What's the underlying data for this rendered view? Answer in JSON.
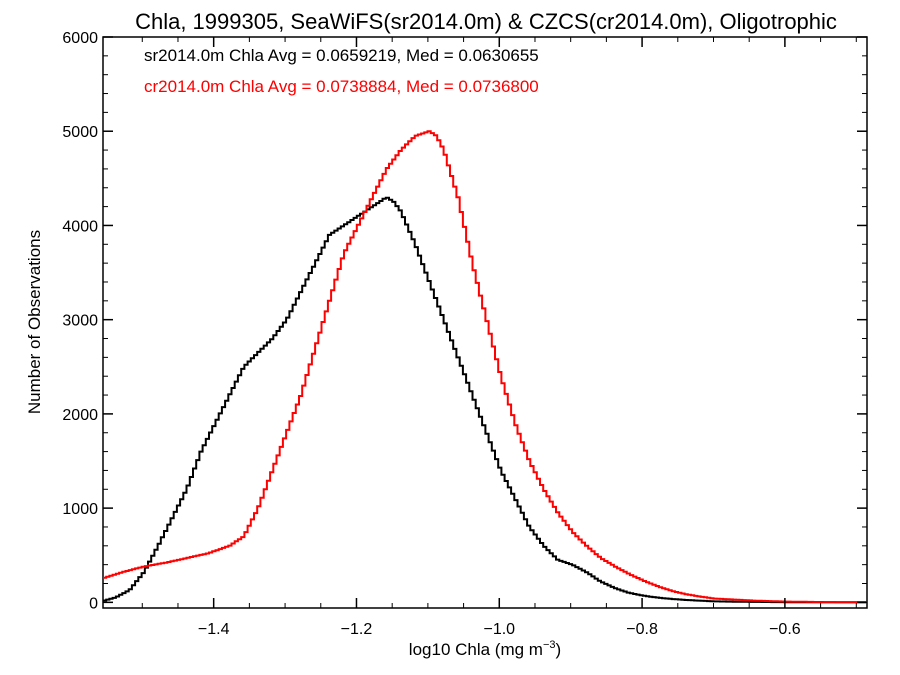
{
  "chart_data": {
    "type": "line",
    "title": "Chla, 1999305, SeaWiFS(sr2014.0m) & CZCS(cr2014.0m), Oligotrophic",
    "xlabel_main": "log10 Chla (mg m",
    "xlabel_exp": "−3",
    "xlabel_close": ")",
    "ylabel": "Number of Observations",
    "xlim": [
      -1.555,
      -0.485
    ],
    "ylim": [
      -60,
      6000
    ],
    "xticks": [
      -1.4,
      -1.2,
      -1.0,
      -0.8,
      -0.6
    ],
    "xtick_labels": [
      "−1.4",
      "−1.2",
      "−1.0",
      "−0.8",
      "−0.6"
    ],
    "yticks": [
      0,
      1000,
      2000,
      3000,
      4000,
      5000,
      6000
    ],
    "ytick_labels": [
      "0",
      "1000",
      "2000",
      "3000",
      "4000",
      "5000",
      "6000"
    ],
    "annotations": [
      {
        "text": "sr2014.0m Chla Avg = 0.0659219, Med = 0.0630655",
        "color": "#000000"
      },
      {
        "text": "cr2014.0m Chla Avg = 0.0738884, Med = 0.0736800",
        "color": "#ff0000"
      }
    ],
    "series": [
      {
        "color": "#000000",
        "x": [
          -1.555,
          -1.54,
          -1.52,
          -1.5,
          -1.48,
          -1.46,
          -1.44,
          -1.42,
          -1.4,
          -1.38,
          -1.36,
          -1.34,
          -1.32,
          -1.3,
          -1.28,
          -1.26,
          -1.24,
          -1.22,
          -1.2,
          -1.18,
          -1.16,
          -1.15,
          -1.14,
          -1.12,
          -1.1,
          -1.08,
          -1.06,
          -1.04,
          -1.02,
          -1.0,
          -0.98,
          -0.96,
          -0.94,
          -0.92,
          -0.9,
          -0.88,
          -0.86,
          -0.84,
          -0.82,
          -0.8,
          -0.78,
          -0.76,
          -0.74,
          -0.7,
          -0.65,
          -0.6,
          -0.55,
          -0.485
        ],
        "y": [
          20,
          50,
          130,
          320,
          600,
          900,
          1200,
          1600,
          1900,
          2200,
          2500,
          2650,
          2800,
          3000,
          3300,
          3600,
          3900,
          4000,
          4100,
          4200,
          4300,
          4250,
          4150,
          3800,
          3400,
          3000,
          2600,
          2200,
          1800,
          1400,
          1100,
          800,
          600,
          450,
          400,
          320,
          220,
          150,
          100,
          70,
          50,
          35,
          25,
          10,
          5,
          2,
          0,
          0
        ]
      },
      {
        "color": "#ff0000",
        "x": [
          -1.555,
          -1.53,
          -1.5,
          -1.47,
          -1.44,
          -1.41,
          -1.38,
          -1.36,
          -1.34,
          -1.32,
          -1.3,
          -1.28,
          -1.26,
          -1.24,
          -1.22,
          -1.2,
          -1.18,
          -1.16,
          -1.14,
          -1.12,
          -1.1,
          -1.09,
          -1.08,
          -1.06,
          -1.04,
          -1.02,
          -1.0,
          -0.98,
          -0.96,
          -0.94,
          -0.92,
          -0.9,
          -0.88,
          -0.86,
          -0.84,
          -0.82,
          -0.8,
          -0.78,
          -0.76,
          -0.74,
          -0.72,
          -0.7,
          -0.65,
          -0.6,
          -0.55,
          -0.485
        ],
        "y": [
          260,
          320,
          380,
          420,
          470,
          520,
          600,
          700,
          1000,
          1400,
          1800,
          2200,
          2700,
          3200,
          3700,
          4000,
          4300,
          4600,
          4800,
          4950,
          5000,
          4950,
          4800,
          4300,
          3600,
          3000,
          2400,
          1900,
          1500,
          1200,
          950,
          750,
          600,
          470,
          380,
          300,
          230,
          170,
          120,
          85,
          60,
          40,
          20,
          8,
          3,
          0
        ]
      }
    ]
  }
}
